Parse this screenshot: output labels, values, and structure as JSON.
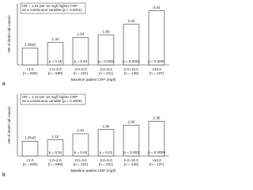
{
  "chart_data": [
    {
      "type": "bar",
      "panel_label": "a",
      "ylabel": "HR of death (all-cause)",
      "xlabel": "Baseline patient CRP (mg/l)",
      "annotation": [
        "HR = 1.21 per 10 mg/l higher CRP",
        "as a continuous variable (p < 0.0001)"
      ],
      "categories": [
        "<1.0",
        "1.0–2.0",
        "2.0–3.0",
        "3.0–5.0",
        "5.0–10.0",
        ">10.0"
      ],
      "counts": [
        "(n = 829)",
        "(n = 599)",
        "(n = 221)",
        "(n = 221)",
        "(n = 148)",
        "(n = 137)"
      ],
      "values": [
        1,
        1.34,
        1.64,
        1.8,
        2.43,
        3.24
      ],
      "value_labels": [
        "1 (Ref)",
        "1.34",
        "1.64",
        "1.80",
        "2.43",
        "3.24"
      ],
      "p_labels": [
        null,
        "p = 0.15",
        "p = 0.04",
        "p = 0.009",
        "p = 0.0002",
        "p < 0.0001"
      ],
      "color": "#ffffff",
      "ylim": [
        0,
        3.7
      ]
    },
    {
      "type": "bar",
      "panel_label": "b",
      "ylabel": "HR of death (all-cause)",
      "xlabel": "Baseline patient CRP (mg/l)",
      "annotation": [
        "HR = 1.12 per 10 mg/l higher CRP",
        "as a continuous variable (p = 0.0009)"
      ],
      "categories": [
        "<1.0",
        "1.0–2.0",
        "2.0–3.0",
        "3.0–5.0",
        "5.0–10.0",
        ">10.0"
      ],
      "counts": [
        "(n = 829)",
        "(n = 599)",
        "(n = 221)",
        "(n = 221)",
        "(n = 148)",
        "(n = 137)"
      ],
      "values": [
        1,
        1.1,
        1.51,
        1.8,
        2.09,
        2.36
      ],
      "value_labels": [
        "1 (Ref)",
        "1.10",
        "1.51",
        "1.80",
        "2.09",
        "2.36"
      ],
      "p_labels": [
        null,
        "p = 0.51",
        "p = 0.04",
        "p = 0.01",
        "p = 0.003",
        "p = 0.0009"
      ],
      "color": "#ffffff",
      "ylim": [
        0,
        4.2
      ]
    }
  ]
}
